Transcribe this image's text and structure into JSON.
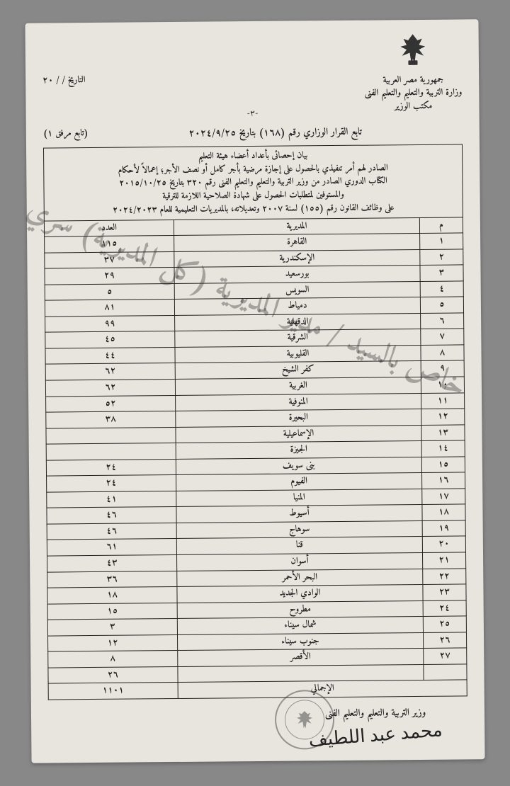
{
  "letterhead": {
    "line1": "جمهورية مصر العربية",
    "line2": "وزارة التربية والتعليم والتعليم الفنى",
    "line3": "مكتب الوزير"
  },
  "date_label": "التاريخ    /    /   ٢٠",
  "page_num": "-٣-",
  "decision": {
    "main": "تابع القرار الوزاري رقم (١٦٨) بتاريخ ٢٠٢٤/٩/٢٥",
    "annex": "(تابع مرفق ١)"
  },
  "header_block": "بيان إحصائى بأعداد أعضاء هيئة التعليم\nالصادر لهم أمر تنفيذي بالحصول على إجازة مرضية بأجر كامل أو نصف الأجر؛ إعمالاً لأحكام\nالكتاب الدوري الصادر من وزير التربية والتعليم والتعليم الفنى رقم ٣٢٠ بتاريخ ٢٠١٥/١٠/٢٥\nوالمستوفين لمتطلبات الحصول على شهادة الصلاحية اللازمة للترقية\nعلى وظائف القانون رقم (١٥٥) لسنة ٢٠٠٧ وتعديلاته، بالمديريات التعليمية للعام ٢٠٢٤/٢٠٢٣",
  "columns": {
    "num": "م",
    "dir": "المديرية",
    "count": "العدد"
  },
  "rows": [
    {
      "n": "١",
      "dir": "القاهرة",
      "c": "١١٥"
    },
    {
      "n": "٢",
      "dir": "الإسكندرية",
      "c": "٣٧"
    },
    {
      "n": "٣",
      "dir": "بورسعيد",
      "c": "٢٩"
    },
    {
      "n": "٤",
      "dir": "السويس",
      "c": "٥"
    },
    {
      "n": "٥",
      "dir": "دمياط",
      "c": "٨١"
    },
    {
      "n": "٦",
      "dir": "الدقهلية",
      "c": "٩٩"
    },
    {
      "n": "٧",
      "dir": "الشرقية",
      "c": "٤٥"
    },
    {
      "n": "٨",
      "dir": "القليوبية",
      "c": "٤٤"
    },
    {
      "n": "٩",
      "dir": "كفر الشيخ",
      "c": "٦٢"
    },
    {
      "n": "١٠",
      "dir": "الغربية",
      "c": "٦٢"
    },
    {
      "n": "١١",
      "dir": "المنوفية",
      "c": "٥٢"
    },
    {
      "n": "١٢",
      "dir": "البحيرة",
      "c": "٣٨"
    },
    {
      "n": "١٣",
      "dir": "الإسماعيلية",
      "c": ""
    },
    {
      "n": "١٤",
      "dir": "الجيزة",
      "c": ""
    },
    {
      "n": "١٥",
      "dir": "بنى سويف",
      "c": "٢٤"
    },
    {
      "n": "١٦",
      "dir": "الفيوم",
      "c": "٢٤"
    },
    {
      "n": "١٧",
      "dir": "المنيا",
      "c": "٤١"
    },
    {
      "n": "١٨",
      "dir": "أسيوط",
      "c": "٤٦"
    },
    {
      "n": "١٩",
      "dir": "سوهاج",
      "c": "٤٦"
    },
    {
      "n": "٢٠",
      "dir": "قنا",
      "c": "٦١"
    },
    {
      "n": "٢١",
      "dir": "أسوان",
      "c": "٤٣"
    },
    {
      "n": "٢٢",
      "dir": "البحر الأحمر",
      "c": "٣٦"
    },
    {
      "n": "٢٣",
      "dir": "الوادي الجديد",
      "c": "١٨"
    },
    {
      "n": "٢٤",
      "dir": "مطروح",
      "c": "١٥"
    },
    {
      "n": "٢٥",
      "dir": "شمال سيناء",
      "c": "٣"
    },
    {
      "n": "٢٦",
      "dir": "جنوب سيناء",
      "c": "١٢"
    },
    {
      "n": "٢٧",
      "dir": "الأقصر",
      "c": "٨"
    }
  ],
  "extra_row": {
    "dir": "",
    "c": "٢٦"
  },
  "total": {
    "label": "الإجمالي",
    "value": "١١٠١"
  },
  "watermark": "خاص بالسيد / مدير المديرية (كل المديرية) سري",
  "footer": {
    "minister_title": "وزير التربية والتعليم والتعليم الفنى",
    "signature": "محمد عبد اللطيف"
  },
  "colors": {
    "paper_bg": "#e8e4de",
    "text": "#222222",
    "border": "#222222",
    "watermark": "rgba(40,40,40,0.35)"
  }
}
